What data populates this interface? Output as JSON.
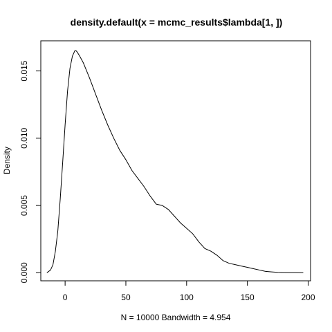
{
  "chart_data": {
    "type": "line",
    "title": "density.default(x = mcmc_results$lambda[1, ])",
    "xlabel": "N = 10000   Bandwidth = 4.954",
    "ylabel": "Density",
    "xlim": [
      -20,
      202
    ],
    "ylim": [
      -0.0006,
      0.01724
    ],
    "x_ticks": [
      0,
      50,
      100,
      150,
      200
    ],
    "x_tick_labels": [
      "0",
      "50",
      "100",
      "150",
      "200"
    ],
    "y_ticks": [
      0.0,
      0.005,
      0.01,
      0.015
    ],
    "y_tick_labels": [
      "0.000",
      "0.005",
      "0.010",
      "0.015"
    ],
    "grid": false,
    "legend": "none",
    "series": [
      {
        "x": [
          -15,
          -12,
          -10,
          -8,
          -6,
          -4,
          -2,
          0,
          2,
          4,
          6,
          8,
          9,
          10,
          12,
          15,
          20,
          25,
          30,
          35,
          40,
          45,
          50,
          55,
          60,
          65,
          70,
          75,
          80,
          85,
          90,
          95,
          100,
          105,
          110,
          115,
          120,
          125,
          130,
          135,
          140,
          145,
          150,
          155,
          160,
          165,
          170,
          175,
          180,
          185,
          190,
          196
        ],
        "y": [
          0.0,
          0.0002,
          0.0006,
          0.0016,
          0.0031,
          0.0055,
          0.0082,
          0.011,
          0.0135,
          0.0152,
          0.0161,
          0.0165,
          0.0165,
          0.0164,
          0.0161,
          0.0156,
          0.0145,
          0.0133,
          0.0121,
          0.011,
          0.01,
          0.0091,
          0.0084,
          0.0076,
          0.007,
          0.0064,
          0.0057,
          0.0051,
          0.005,
          0.0047,
          0.0042,
          0.0037,
          0.0033,
          0.0029,
          0.0023,
          0.0018,
          0.0016,
          0.0013,
          0.0009,
          0.0007,
          0.0006,
          0.0005,
          0.0004,
          0.0003,
          0.0002,
          0.0001,
          6e-05,
          3e-05,
          2e-05,
          1e-05,
          1e-05,
          0.0
        ]
      }
    ]
  }
}
